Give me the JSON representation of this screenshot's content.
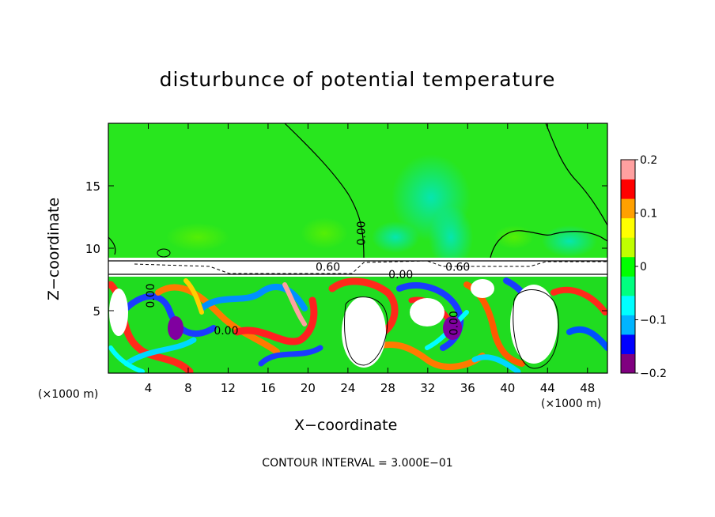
{
  "chart_data": {
    "type": "heatmap",
    "title": "disturbunce of potential temperature",
    "xlabel": "X−coordinate",
    "ylabel": "Z−coordinate",
    "x_unit_left": "(×1000 m)",
    "x_unit_right": "(×1000 m)",
    "footer": "CONTOUR INTERVAL = 3.000E−01",
    "xlim": [
      0,
      50
    ],
    "ylim": [
      0,
      20
    ],
    "x_ticks": [
      4,
      8,
      12,
      16,
      20,
      24,
      28,
      32,
      36,
      40,
      44,
      48
    ],
    "y_ticks": [
      5,
      10,
      15
    ],
    "colorbar": {
      "min": -0.2,
      "max": 0.2,
      "ticks": [
        {
          "value": 0.2,
          "label": "0.2"
        },
        {
          "value": 0.1,
          "label": "0.1"
        },
        {
          "value": 0,
          "label": "0"
        },
        {
          "value": -0.1,
          "label": "−0.1"
        },
        {
          "value": -0.2,
          "label": "−0.2"
        }
      ],
      "colors": [
        "#800080",
        "#0000ff",
        "#00b4ff",
        "#00ffff",
        "#00ff80",
        "#00ff00",
        "#c0ff00",
        "#ffff00",
        "#ffa000",
        "#ff0000",
        "#ffa0a0"
      ]
    },
    "contour_labels": [
      {
        "text": "0.00",
        "x": 25.7,
        "z": 11.2,
        "rotate": -90
      },
      {
        "text": "0.60",
        "x": 22.0,
        "z": 8.2
      },
      {
        "text": "0.00",
        "x": 29.3,
        "z": 7.6
      },
      {
        "text": "0.60",
        "x": 35.0,
        "z": 8.2
      },
      {
        "text": "0.00",
        "x": 11.8,
        "z": 3.1
      },
      {
        "text": "0.00",
        "x": 4.6,
        "z": 6.2,
        "rotate": -90
      },
      {
        "text": "0.00",
        "x": 35.0,
        "z": 4.0,
        "rotate": -90
      }
    ]
  }
}
